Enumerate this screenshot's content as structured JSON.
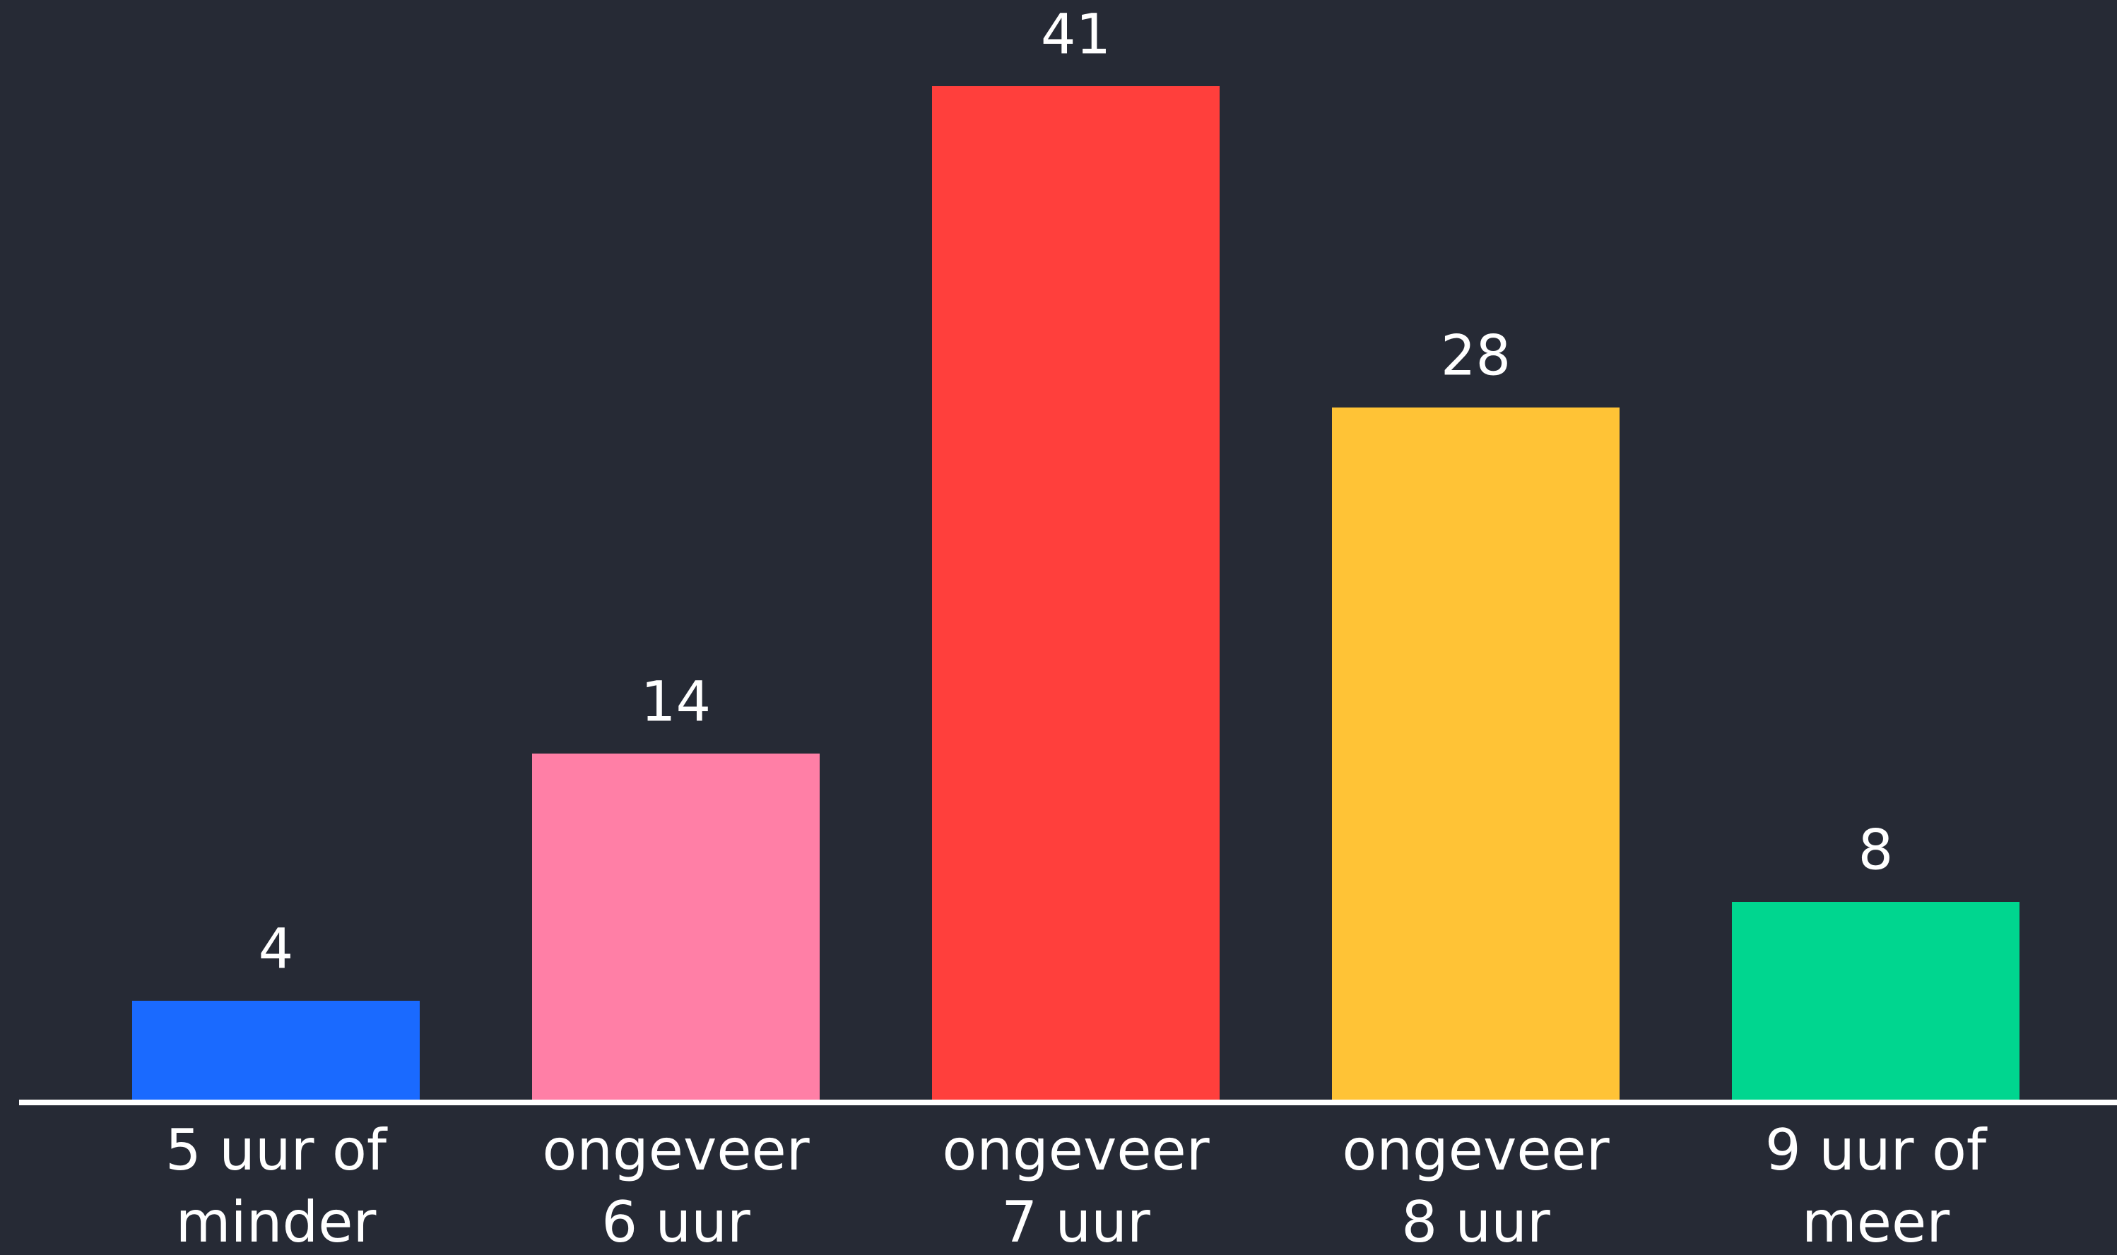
{
  "chart_data": {
    "type": "bar",
    "categories": [
      [
        "5 uur of",
        "minder"
      ],
      [
        "ongeveer",
        "6 uur"
      ],
      [
        "ongeveer",
        "7 uur"
      ],
      [
        "ongeveer",
        "8 uur"
      ],
      [
        "9 uur of",
        "meer"
      ]
    ],
    "values": [
      4,
      14,
      41,
      28,
      8
    ],
    "colors": [
      "#1a6aff",
      "#ff7fa6",
      "#ff3f3c",
      "#ffc336",
      "#00d68f"
    ]
  }
}
